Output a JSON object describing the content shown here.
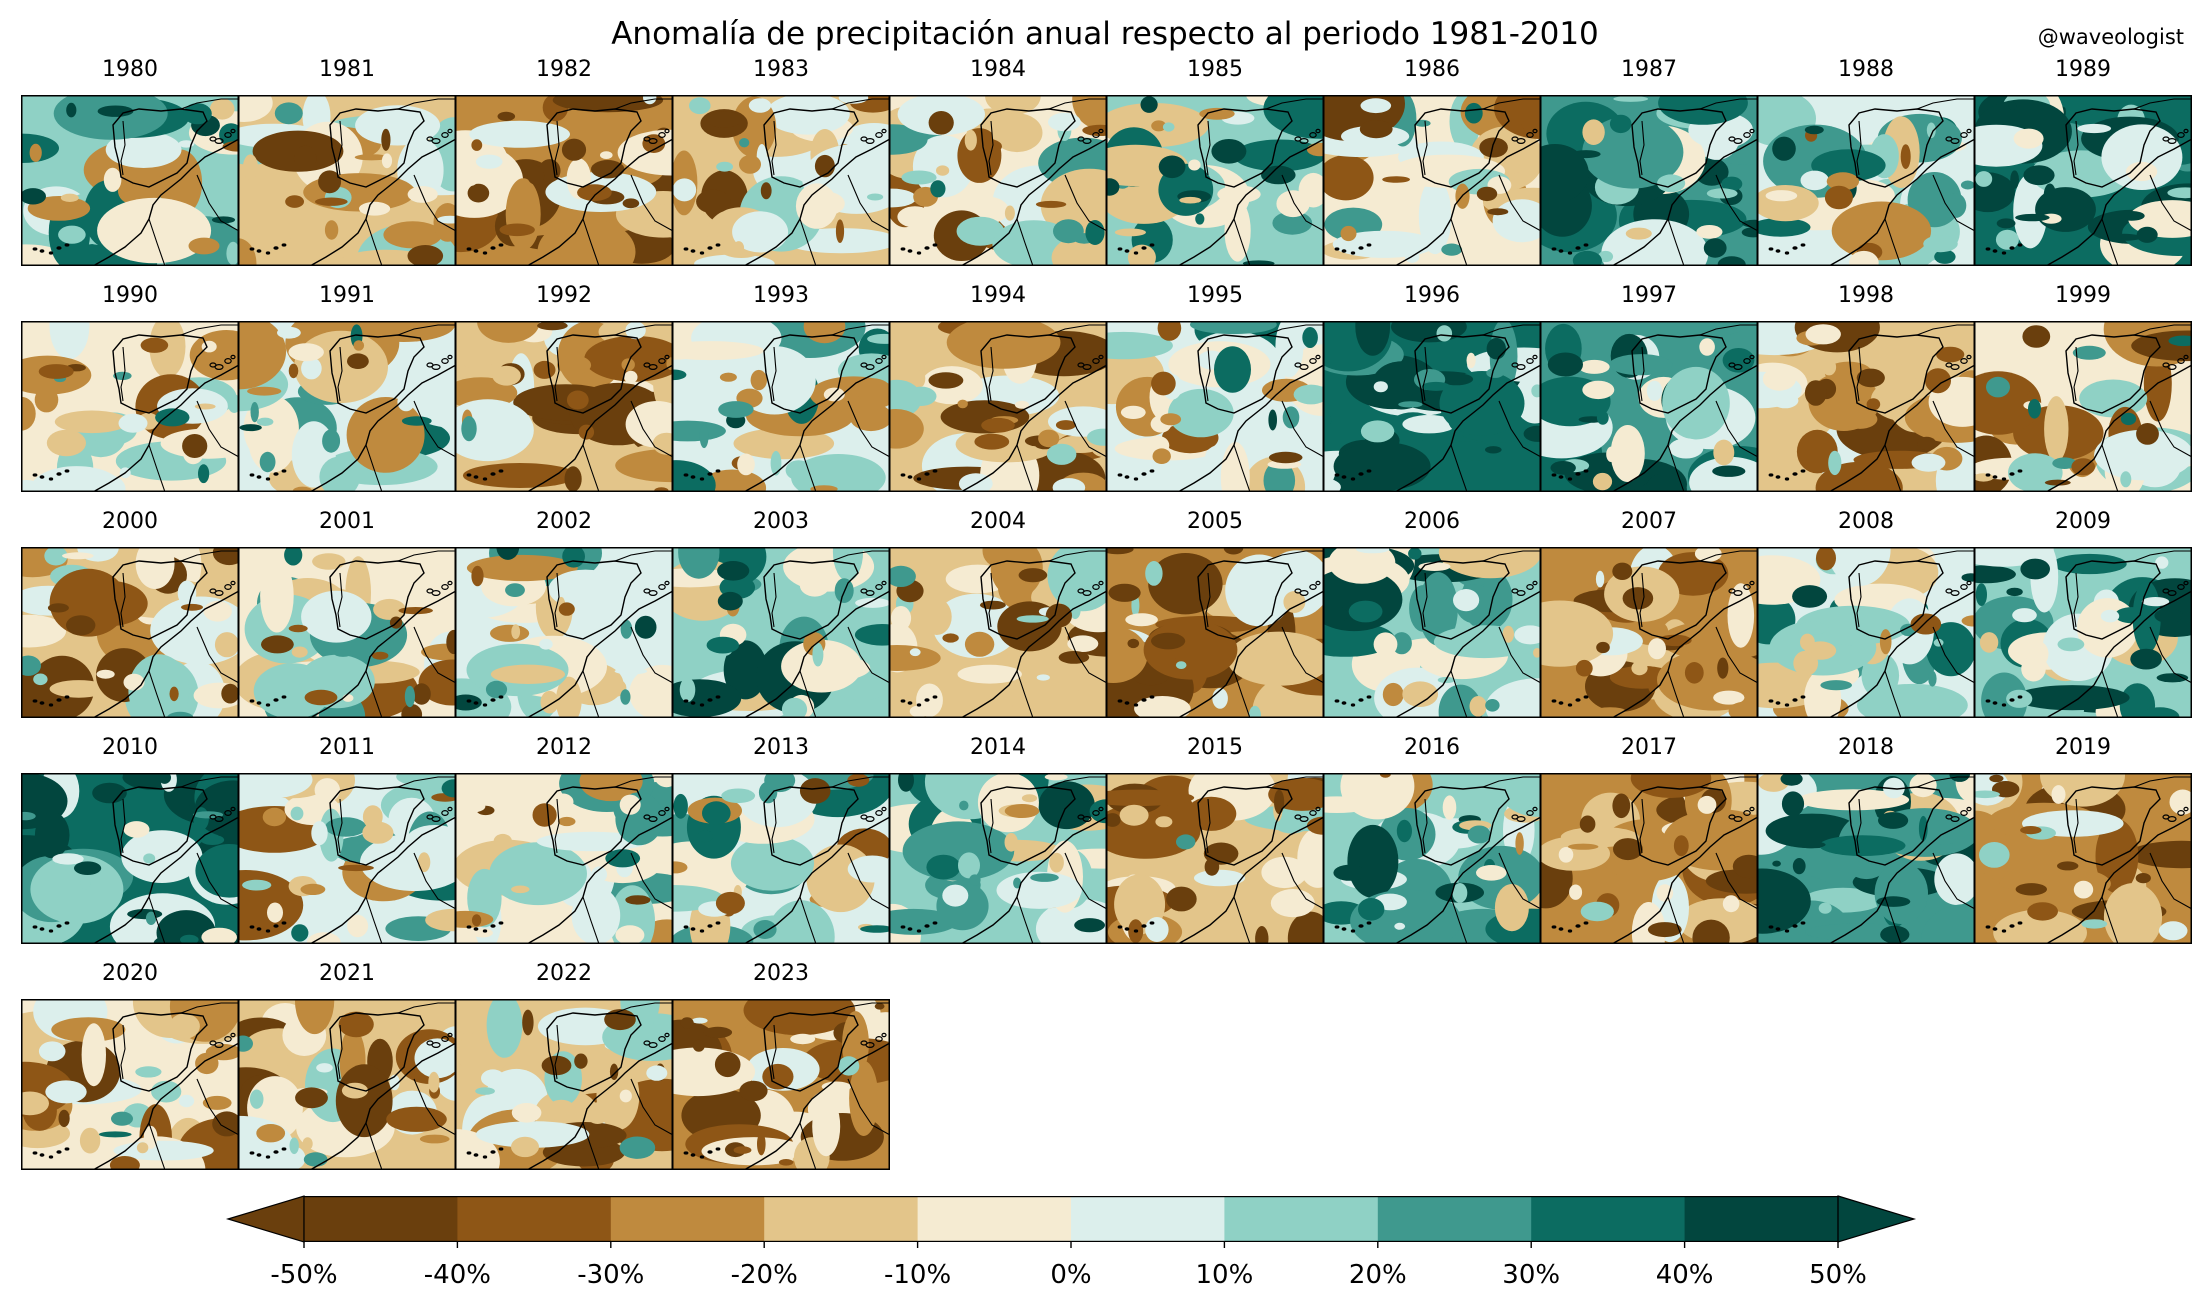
{
  "title": "Anomalía de precipitación anual respecto al periodo 1981-2010",
  "credit": "@waveologist",
  "panels": [
    {
      "year": "1980",
      "anomaly": 10
    },
    {
      "year": "1981",
      "anomaly": -15
    },
    {
      "year": "1982",
      "anomaly": -25
    },
    {
      "year": "1983",
      "anomaly": -15
    },
    {
      "year": "1984",
      "anomaly": -10
    },
    {
      "year": "1985",
      "anomaly": 15
    },
    {
      "year": "1986",
      "anomaly": -10
    },
    {
      "year": "1987",
      "anomaly": 25
    },
    {
      "year": "1988",
      "anomaly": 5
    },
    {
      "year": "1989",
      "anomaly": 30
    },
    {
      "year": "1990",
      "anomaly": -5
    },
    {
      "year": "1991",
      "anomaly": 0
    },
    {
      "year": "1992",
      "anomaly": -20
    },
    {
      "year": "1993",
      "anomaly": 5
    },
    {
      "year": "1994",
      "anomaly": -20
    },
    {
      "year": "1995",
      "anomaly": 0
    },
    {
      "year": "1996",
      "anomaly": 35
    },
    {
      "year": "1997",
      "anomaly": 25
    },
    {
      "year": "1998",
      "anomaly": -20
    },
    {
      "year": "1999",
      "anomaly": -10
    },
    {
      "year": "2000",
      "anomaly": -15
    },
    {
      "year": "2001",
      "anomaly": -10
    },
    {
      "year": "2002",
      "anomaly": 5
    },
    {
      "year": "2003",
      "anomaly": 15
    },
    {
      "year": "2004",
      "anomaly": -15
    },
    {
      "year": "2005",
      "anomaly": -25
    },
    {
      "year": "2006",
      "anomaly": 15
    },
    {
      "year": "2007",
      "anomaly": -25
    },
    {
      "year": "2008",
      "anomaly": 5
    },
    {
      "year": "2009",
      "anomaly": 15
    },
    {
      "year": "2010",
      "anomaly": 35
    },
    {
      "year": "2011",
      "anomaly": 0
    },
    {
      "year": "2012",
      "anomaly": -5
    },
    {
      "year": "2013",
      "anomaly": 0
    },
    {
      "year": "2014",
      "anomaly": 15
    },
    {
      "year": "2015",
      "anomaly": -20
    },
    {
      "year": "2016",
      "anomaly": 10
    },
    {
      "year": "2017",
      "anomaly": -30
    },
    {
      "year": "2018",
      "anomaly": 20
    },
    {
      "year": "2019",
      "anomaly": -25
    },
    {
      "year": "2020",
      "anomaly": -10
    },
    {
      "year": "2021",
      "anomaly": -15
    },
    {
      "year": "2022",
      "anomaly": -15
    },
    {
      "year": "2023",
      "anomaly": -30
    }
  ],
  "colorbar": {
    "labels": [
      "-50%",
      "-40%",
      "-30%",
      "-20%",
      "-10%",
      "0%",
      "10%",
      "20%",
      "30%",
      "40%",
      "50%"
    ],
    "colors": [
      "#6a3f0d",
      "#8e5616",
      "#bf8a3e",
      "#e3c58a",
      "#f5ebd2",
      "#dcefec",
      "#8fd1c5",
      "#3f998e",
      "#0c6c61",
      "#02463e"
    ],
    "extend_low_color": "#6a3f0d",
    "extend_high_color": "#02463e"
  }
}
